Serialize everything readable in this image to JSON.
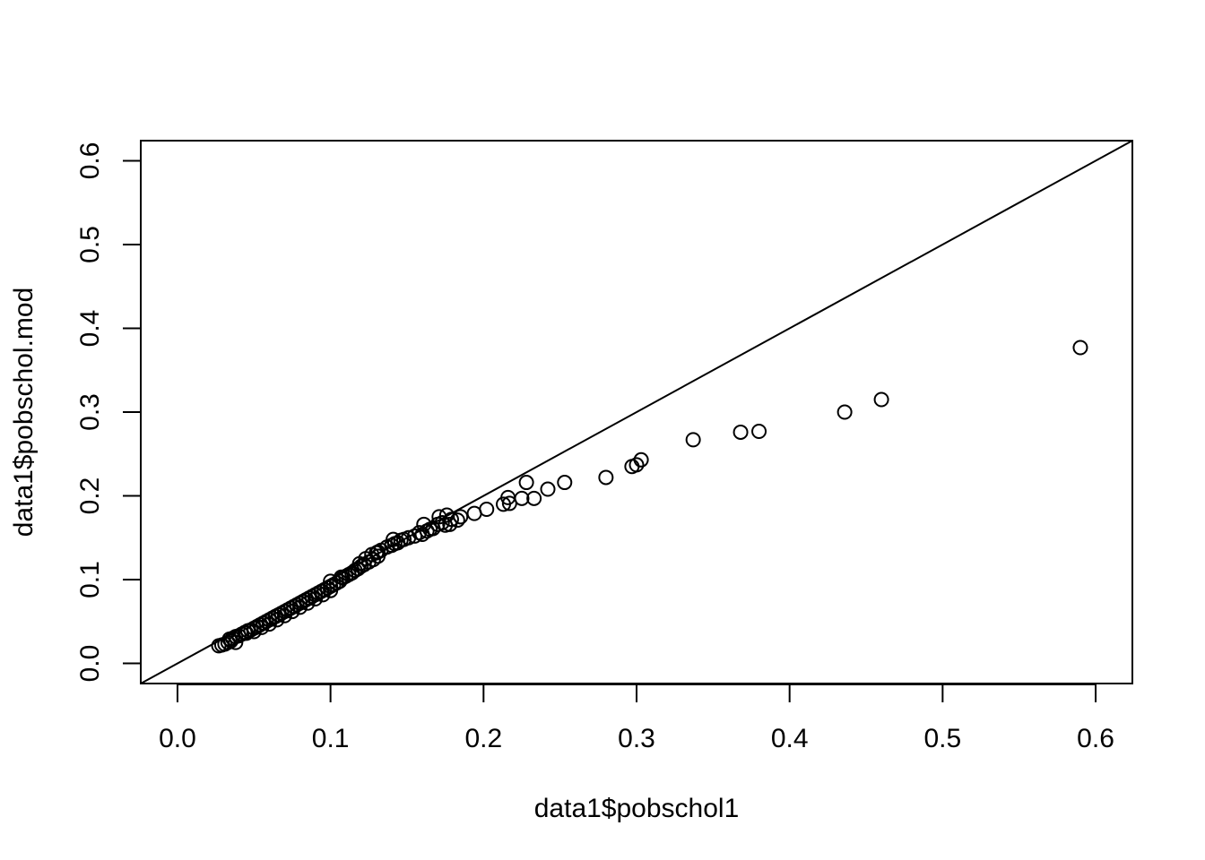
{
  "chart_data": {
    "type": "scatter",
    "title": "",
    "xlabel": "data1$pobschol1",
    "ylabel": "data1$pobschol.mod",
    "xlim": [
      -0.024,
      0.624
    ],
    "ylim": [
      -0.024,
      0.624
    ],
    "x_ticks": [
      "0.0",
      "0.1",
      "0.2",
      "0.3",
      "0.4",
      "0.5",
      "0.6"
    ],
    "y_ticks": [
      "0.0",
      "0.1",
      "0.2",
      "0.3",
      "0.4",
      "0.5",
      "0.6"
    ],
    "reference_line": {
      "intercept": 0,
      "slope": 1
    },
    "marker": "open-circle",
    "grid": false,
    "points": [
      {
        "x": 0.027,
        "y": 0.021
      },
      {
        "x": 0.029,
        "y": 0.022
      },
      {
        "x": 0.031,
        "y": 0.023
      },
      {
        "x": 0.033,
        "y": 0.025
      },
      {
        "x": 0.035,
        "y": 0.027
      },
      {
        "x": 0.038,
        "y": 0.025
      },
      {
        "x": 0.034,
        "y": 0.029
      },
      {
        "x": 0.036,
        "y": 0.03
      },
      {
        "x": 0.038,
        "y": 0.032
      },
      {
        "x": 0.04,
        "y": 0.033
      },
      {
        "x": 0.042,
        "y": 0.035
      },
      {
        "x": 0.044,
        "y": 0.037
      },
      {
        "x": 0.046,
        "y": 0.039
      },
      {
        "x": 0.048,
        "y": 0.04
      },
      {
        "x": 0.05,
        "y": 0.042
      },
      {
        "x": 0.052,
        "y": 0.044
      },
      {
        "x": 0.054,
        "y": 0.046
      },
      {
        "x": 0.056,
        "y": 0.048
      },
      {
        "x": 0.058,
        "y": 0.05
      },
      {
        "x": 0.06,
        "y": 0.052
      },
      {
        "x": 0.062,
        "y": 0.054
      },
      {
        "x": 0.064,
        "y": 0.056
      },
      {
        "x": 0.066,
        "y": 0.058
      },
      {
        "x": 0.068,
        "y": 0.06
      },
      {
        "x": 0.07,
        "y": 0.062
      },
      {
        "x": 0.072,
        "y": 0.064
      },
      {
        "x": 0.074,
        "y": 0.066
      },
      {
        "x": 0.076,
        "y": 0.068
      },
      {
        "x": 0.078,
        "y": 0.07
      },
      {
        "x": 0.08,
        "y": 0.072
      },
      {
        "x": 0.082,
        "y": 0.074
      },
      {
        "x": 0.084,
        "y": 0.076
      },
      {
        "x": 0.086,
        "y": 0.078
      },
      {
        "x": 0.088,
        "y": 0.08
      },
      {
        "x": 0.09,
        "y": 0.082
      },
      {
        "x": 0.092,
        "y": 0.084
      },
      {
        "x": 0.094,
        "y": 0.086
      },
      {
        "x": 0.096,
        "y": 0.088
      },
      {
        "x": 0.098,
        "y": 0.09
      },
      {
        "x": 0.1,
        "y": 0.092
      },
      {
        "x": 0.102,
        "y": 0.094
      },
      {
        "x": 0.104,
        "y": 0.096
      },
      {
        "x": 0.106,
        "y": 0.098
      },
      {
        "x": 0.108,
        "y": 0.102
      },
      {
        "x": 0.11,
        "y": 0.104
      },
      {
        "x": 0.112,
        "y": 0.106
      },
      {
        "x": 0.114,
        "y": 0.108
      },
      {
        "x": 0.116,
        "y": 0.111
      },
      {
        "x": 0.118,
        "y": 0.113
      },
      {
        "x": 0.12,
        "y": 0.116
      },
      {
        "x": 0.122,
        "y": 0.118
      },
      {
        "x": 0.125,
        "y": 0.121
      },
      {
        "x": 0.128,
        "y": 0.124
      },
      {
        "x": 0.131,
        "y": 0.128
      },
      {
        "x": 0.045,
        "y": 0.036
      },
      {
        "x": 0.05,
        "y": 0.038
      },
      {
        "x": 0.055,
        "y": 0.043
      },
      {
        "x": 0.06,
        "y": 0.047
      },
      {
        "x": 0.065,
        "y": 0.052
      },
      {
        "x": 0.07,
        "y": 0.057
      },
      {
        "x": 0.075,
        "y": 0.062
      },
      {
        "x": 0.08,
        "y": 0.067
      },
      {
        "x": 0.085,
        "y": 0.072
      },
      {
        "x": 0.09,
        "y": 0.077
      },
      {
        "x": 0.095,
        "y": 0.082
      },
      {
        "x": 0.1,
        "y": 0.087
      },
      {
        "x": 0.1,
        "y": 0.098
      },
      {
        "x": 0.107,
        "y": 0.103
      },
      {
        "x": 0.119,
        "y": 0.119
      },
      {
        "x": 0.123,
        "y": 0.125
      },
      {
        "x": 0.127,
        "y": 0.13
      },
      {
        "x": 0.13,
        "y": 0.132
      },
      {
        "x": 0.133,
        "y": 0.135
      },
      {
        "x": 0.137,
        "y": 0.139
      },
      {
        "x": 0.14,
        "y": 0.141
      },
      {
        "x": 0.142,
        "y": 0.143
      },
      {
        "x": 0.144,
        "y": 0.144
      },
      {
        "x": 0.146,
        "y": 0.147
      },
      {
        "x": 0.148,
        "y": 0.148
      },
      {
        "x": 0.151,
        "y": 0.15
      },
      {
        "x": 0.141,
        "y": 0.148
      },
      {
        "x": 0.131,
        "y": 0.133
      },
      {
        "x": 0.155,
        "y": 0.152
      },
      {
        "x": 0.158,
        "y": 0.156
      },
      {
        "x": 0.16,
        "y": 0.154
      },
      {
        "x": 0.161,
        "y": 0.166
      },
      {
        "x": 0.163,
        "y": 0.158
      },
      {
        "x": 0.165,
        "y": 0.16
      },
      {
        "x": 0.167,
        "y": 0.161
      },
      {
        "x": 0.17,
        "y": 0.166
      },
      {
        "x": 0.171,
        "y": 0.175
      },
      {
        "x": 0.173,
        "y": 0.168
      },
      {
        "x": 0.175,
        "y": 0.165
      },
      {
        "x": 0.176,
        "y": 0.177
      },
      {
        "x": 0.178,
        "y": 0.166
      },
      {
        "x": 0.179,
        "y": 0.172
      },
      {
        "x": 0.183,
        "y": 0.171
      },
      {
        "x": 0.185,
        "y": 0.175
      },
      {
        "x": 0.194,
        "y": 0.179
      },
      {
        "x": 0.202,
        "y": 0.184
      },
      {
        "x": 0.213,
        "y": 0.19
      },
      {
        "x": 0.216,
        "y": 0.198
      },
      {
        "x": 0.217,
        "y": 0.191
      },
      {
        "x": 0.225,
        "y": 0.197
      },
      {
        "x": 0.228,
        "y": 0.216
      },
      {
        "x": 0.233,
        "y": 0.197
      },
      {
        "x": 0.242,
        "y": 0.208
      },
      {
        "x": 0.253,
        "y": 0.216
      },
      {
        "x": 0.28,
        "y": 0.222
      },
      {
        "x": 0.297,
        "y": 0.235
      },
      {
        "x": 0.3,
        "y": 0.237
      },
      {
        "x": 0.303,
        "y": 0.243
      },
      {
        "x": 0.337,
        "y": 0.267
      },
      {
        "x": 0.368,
        "y": 0.276
      },
      {
        "x": 0.38,
        "y": 0.277
      },
      {
        "x": 0.436,
        "y": 0.3
      },
      {
        "x": 0.46,
        "y": 0.315
      },
      {
        "x": 0.59,
        "y": 0.377
      }
    ]
  }
}
